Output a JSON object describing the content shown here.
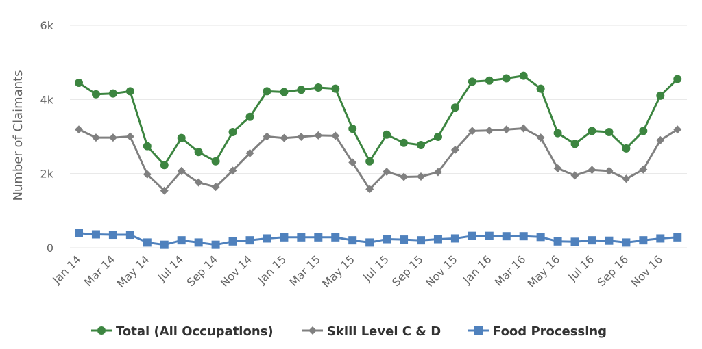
{
  "chart_data": {
    "type": "line",
    "title": "",
    "xlabel": "",
    "ylabel": "Number of Claimants",
    "ylim": [
      0,
      6000
    ],
    "y_ticks": [
      {
        "value": 0,
        "label": "0"
      },
      {
        "value": 2000,
        "label": "2k"
      },
      {
        "value": 4000,
        "label": "4k"
      },
      {
        "value": 6000,
        "label": "6k"
      }
    ],
    "grid": true,
    "legend_position": "bottom",
    "categories": [
      "Jan 14",
      "Feb 14",
      "Mar 14",
      "Apr 14",
      "May 14",
      "Jun 14",
      "Jul 14",
      "Aug 14",
      "Sep 14",
      "Oct 14",
      "Nov 14",
      "Dec 14",
      "Jan 15",
      "Feb 15",
      "Mar 15",
      "Apr 15",
      "May 15",
      "Jun 15",
      "Jul 15",
      "Aug 15",
      "Sep 15",
      "Oct 15",
      "Nov 15",
      "Dec 15",
      "Jan 16",
      "Feb 16",
      "Mar 16",
      "Apr 16",
      "May 16",
      "Jun 16",
      "Jul 16",
      "Aug 16",
      "Sep 16",
      "Oct 16",
      "Nov 16",
      "Dec 16"
    ],
    "x_tick_labels": [
      "Jan 14",
      "Mar 14",
      "May 14",
      "Jul 14",
      "Sep 14",
      "Nov 14",
      "Jan 15",
      "Mar 15",
      "May 15",
      "Jul 15",
      "Sep 15",
      "Nov 15",
      "Jan 16",
      "Mar 16",
      "May 16",
      "Jul 16",
      "Sep 16",
      "Nov 16"
    ],
    "series": [
      {
        "name": "Total (All Occupations)",
        "color": "#3c8540",
        "marker": "circle",
        "values": [
          4450,
          4140,
          4160,
          4220,
          2740,
          2230,
          2960,
          2580,
          2330,
          3120,
          3530,
          4220,
          4200,
          4260,
          4320,
          4290,
          3210,
          2330,
          3050,
          2830,
          2770,
          2990,
          3780,
          4480,
          4510,
          4570,
          4640,
          4290,
          3090,
          2800,
          3150,
          3120,
          2680,
          3150,
          4100,
          4550
        ]
      },
      {
        "name": "Skill Level C & D",
        "color": "#808080",
        "marker": "diamond",
        "values": [
          3190,
          2970,
          2970,
          3000,
          1980,
          1540,
          2070,
          1760,
          1640,
          2080,
          2550,
          3000,
          2960,
          2990,
          3030,
          3020,
          2300,
          1580,
          2050,
          1910,
          1920,
          2040,
          2640,
          3150,
          3160,
          3190,
          3220,
          2970,
          2140,
          1950,
          2100,
          2070,
          1860,
          2110,
          2900,
          3190
        ]
      },
      {
        "name": "Food Processing",
        "color": "#4f81bd",
        "marker": "square",
        "values": [
          390,
          360,
          350,
          350,
          140,
          80,
          200,
          140,
          80,
          170,
          200,
          250,
          280,
          280,
          280,
          280,
          200,
          140,
          230,
          220,
          200,
          230,
          250,
          320,
          320,
          310,
          310,
          290,
          170,
          160,
          200,
          190,
          140,
          200,
          250,
          280
        ]
      }
    ]
  }
}
